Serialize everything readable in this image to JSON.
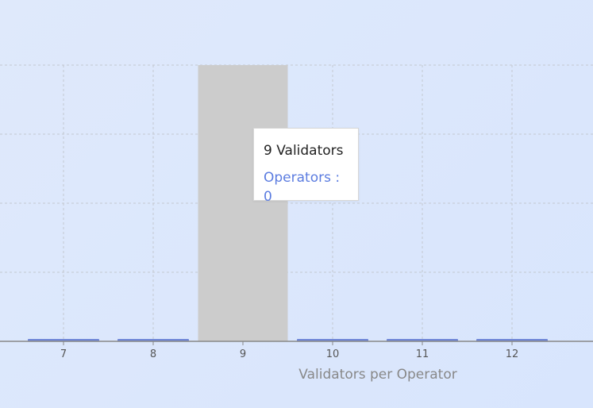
{
  "chart_data": {
    "type": "bar",
    "xlabel": "Validators per Operator",
    "ylabel": "",
    "categories": [
      "7",
      "8",
      "9",
      "10",
      "11",
      "12"
    ],
    "series": [
      {
        "name": "Operators",
        "values": [
          0,
          0,
          0,
          0,
          0,
          0
        ]
      }
    ],
    "ylim": [
      0,
      4
    ],
    "grid": true,
    "highlight_category": "9",
    "colors": {
      "bar": "#6f87d8",
      "highlight": "#cccccc",
      "grid": "#c3c8d0",
      "axis": "#888888",
      "tick_text": "#555555",
      "label_text": "#888888"
    }
  },
  "tooltip": {
    "title": "9 Validators",
    "series_label": "Operators",
    "separator": " : ",
    "value": "0",
    "color": "#5b7ce0"
  }
}
